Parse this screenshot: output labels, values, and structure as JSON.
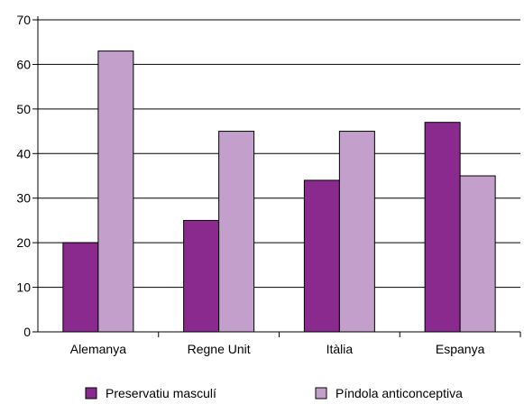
{
  "chart_data": {
    "type": "bar",
    "categories": [
      "Alemanya",
      "Regne Unit",
      "Itàlia",
      "Espanya"
    ],
    "series": [
      {
        "name": "Preservatiu masculí",
        "values": [
          20,
          25,
          34,
          47
        ],
        "color": "#8b2a8e"
      },
      {
        "name": "Píndola anticonceptiva",
        "values": [
          63,
          45,
          45,
          35
        ],
        "color": "#c39fcc"
      }
    ],
    "title": "",
    "xlabel": "",
    "ylabel": "",
    "ylim": [
      0,
      70
    ],
    "yticks": [
      0,
      10,
      20,
      30,
      40,
      50,
      60,
      70
    ],
    "grid": true,
    "legend": "bottom"
  }
}
